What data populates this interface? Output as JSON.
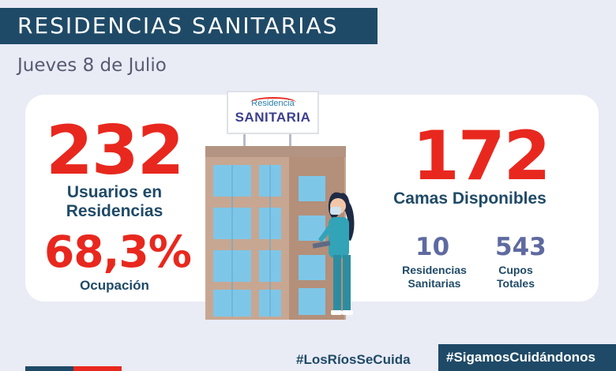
{
  "header": {
    "title": "RESIDENCIAS SANITARIAS",
    "date": "Jueves 8 de Julio"
  },
  "sign": {
    "small": "Residencia",
    "big": "SANITARIA"
  },
  "stats": {
    "usuarios_value": "232",
    "usuarios_label_1": "Usuarios en",
    "usuarios_label_2": "Residencias",
    "ocupacion_value": "68,3%",
    "ocupacion_label": "Ocupación",
    "camas_value": "172",
    "camas_label": "Camas Disponibles",
    "residencias_value": "10",
    "residencias_label_1": "Residencias",
    "residencias_label_2": "Sanitarias",
    "cupos_value": "543",
    "cupos_label_1": "Cupos",
    "cupos_label_2": "Totales"
  },
  "footer": {
    "hashtag_1": "#LosRíosSeCuida",
    "hashtag_2": "#SigamosCuidándonos"
  },
  "colors": {
    "navy": "#1f4a67",
    "red": "#e8281e",
    "steel_blue": "#5e6aa0",
    "background": "#e9ebf5"
  }
}
